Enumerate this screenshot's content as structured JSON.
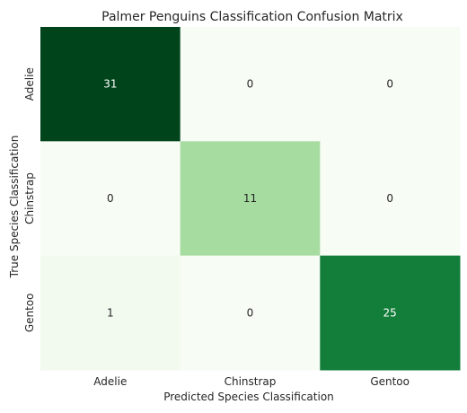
{
  "chart_data": {
    "type": "heatmap",
    "title": "Palmer Penguins Classification Confusion Matrix",
    "xlabel": "Predicted Species Classification",
    "ylabel": "True Species Classification",
    "x_categories": [
      "Adelie",
      "Chinstrap",
      "Gentoo"
    ],
    "y_categories": [
      "Adelie",
      "Chinstrap",
      "Gentoo"
    ],
    "values": [
      [
        31,
        0,
        0
      ],
      [
        0,
        11,
        0
      ],
      [
        1,
        0,
        25
      ]
    ],
    "colormap": "Greens",
    "colors": {
      "low": "#f7fcf5",
      "high": "#00441b",
      "text_dark": "#262626",
      "text_light": "#ffffff"
    },
    "colorbar": false,
    "grid": false
  }
}
